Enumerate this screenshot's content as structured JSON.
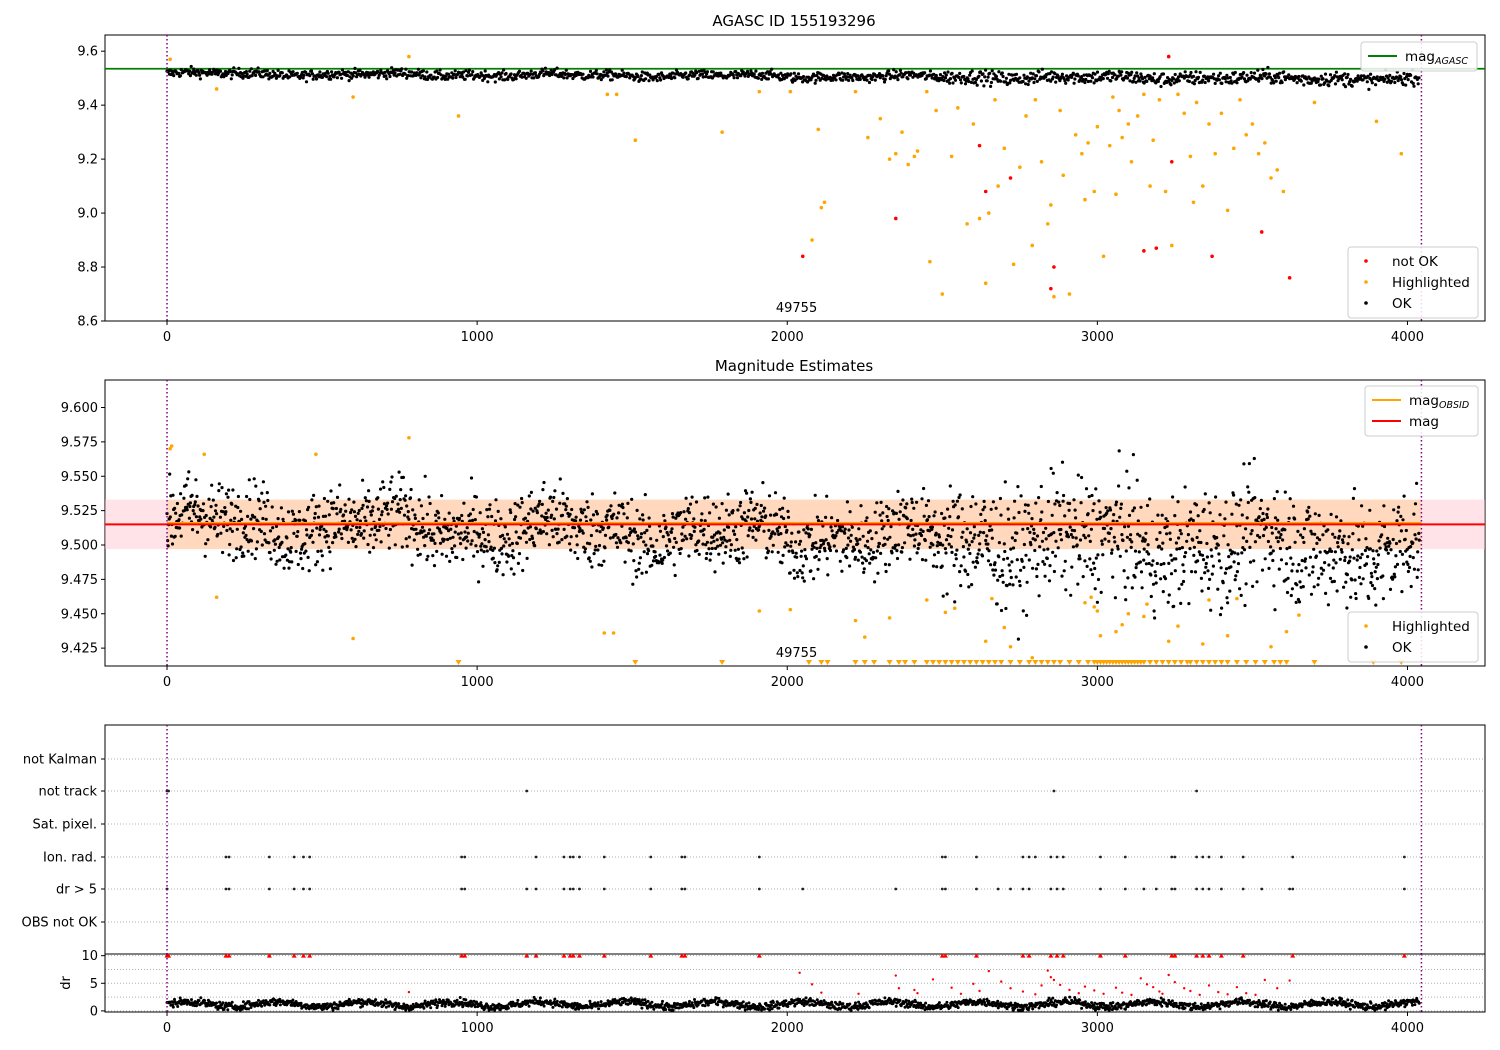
{
  "colors": {
    "ok": "#000000",
    "not_ok": "#ff0000",
    "highlighted": "#ffa500",
    "mag_agasc": "#008000",
    "mag_obsid": "#ffa500",
    "mag": "#ff0000",
    "obsid_marker": "#800080",
    "band_fill": "#ffc0cb",
    "grid": "#b0b0b0"
  },
  "chart_data": [
    {
      "type": "scatter",
      "title": "AGASC ID 155193296",
      "xlim": [
        -200,
        4250
      ],
      "ylim": [
        8.6,
        9.66
      ],
      "x_ticks": [
        "0",
        "1000",
        "2000",
        "3000",
        "4000"
      ],
      "y_ticks": [
        "8.6",
        "8.8",
        "9.0",
        "9.2",
        "9.4",
        "9.6"
      ],
      "obsid_label": "49755",
      "obsid_boundaries": [
        0,
        4045
      ],
      "mag_agasc": 9.535,
      "legend_lines": [
        {
          "label": "mag",
          "subscript": "AGASC"
        }
      ],
      "legend_points": [
        "not OK",
        "Highlighted",
        "OK"
      ],
      "ok_band": {
        "center": 9.517,
        "amplitude": 0.012,
        "trend": -0.02
      },
      "not_ok": [
        [
          2050,
          8.84
        ],
        [
          2350,
          8.98
        ],
        [
          2620,
          9.25
        ],
        [
          2640,
          9.08
        ],
        [
          2720,
          9.13
        ],
        [
          2850,
          8.72
        ],
        [
          2860,
          8.8
        ],
        [
          3150,
          8.86
        ],
        [
          3190,
          8.87
        ],
        [
          3230,
          9.58
        ],
        [
          3240,
          9.19
        ],
        [
          3370,
          8.84
        ],
        [
          3530,
          8.93
        ],
        [
          3620,
          8.76
        ]
      ],
      "highlighted": [
        [
          10,
          9.57
        ],
        [
          160,
          9.46
        ],
        [
          600,
          9.43
        ],
        [
          780,
          9.58
        ],
        [
          940,
          9.36
        ],
        [
          1420,
          9.44
        ],
        [
          1450,
          9.44
        ],
        [
          1510,
          9.27
        ],
        [
          1790,
          9.3
        ],
        [
          1910,
          9.45
        ],
        [
          2010,
          9.45
        ],
        [
          2080,
          8.9
        ],
        [
          2100,
          9.31
        ],
        [
          2110,
          9.02
        ],
        [
          2120,
          9.04
        ],
        [
          2220,
          9.45
        ],
        [
          2260,
          9.28
        ],
        [
          2300,
          9.35
        ],
        [
          2330,
          9.2
        ],
        [
          2350,
          9.22
        ],
        [
          2370,
          9.3
        ],
        [
          2390,
          9.18
        ],
        [
          2410,
          9.21
        ],
        [
          2420,
          9.23
        ],
        [
          2450,
          9.45
        ],
        [
          2460,
          8.82
        ],
        [
          2480,
          9.38
        ],
        [
          2500,
          8.7
        ],
        [
          2530,
          9.21
        ],
        [
          2550,
          9.39
        ],
        [
          2580,
          8.96
        ],
        [
          2600,
          9.33
        ],
        [
          2620,
          8.98
        ],
        [
          2640,
          8.74
        ],
        [
          2650,
          9.0
        ],
        [
          2670,
          9.42
        ],
        [
          2680,
          9.1
        ],
        [
          2700,
          9.24
        ],
        [
          2730,
          8.81
        ],
        [
          2750,
          9.17
        ],
        [
          2770,
          9.36
        ],
        [
          2790,
          8.88
        ],
        [
          2800,
          9.42
        ],
        [
          2820,
          9.19
        ],
        [
          2840,
          8.96
        ],
        [
          2850,
          9.03
        ],
        [
          2860,
          8.69
        ],
        [
          2880,
          9.38
        ],
        [
          2890,
          9.14
        ],
        [
          2910,
          8.7
        ],
        [
          2930,
          9.29
        ],
        [
          2950,
          9.22
        ],
        [
          2960,
          9.05
        ],
        [
          2970,
          9.26
        ],
        [
          2990,
          9.08
        ],
        [
          3000,
          9.32
        ],
        [
          3020,
          8.84
        ],
        [
          3040,
          9.25
        ],
        [
          3050,
          9.43
        ],
        [
          3060,
          9.07
        ],
        [
          3070,
          9.38
        ],
        [
          3080,
          9.28
        ],
        [
          3100,
          9.33
        ],
        [
          3110,
          9.19
        ],
        [
          3130,
          9.36
        ],
        [
          3150,
          9.44
        ],
        [
          3170,
          9.1
        ],
        [
          3180,
          9.27
        ],
        [
          3200,
          9.42
        ],
        [
          3220,
          9.08
        ],
        [
          3240,
          8.88
        ],
        [
          3260,
          9.44
        ],
        [
          3280,
          9.37
        ],
        [
          3300,
          9.21
        ],
        [
          3310,
          9.04
        ],
        [
          3320,
          9.41
        ],
        [
          3340,
          9.1
        ],
        [
          3360,
          9.33
        ],
        [
          3380,
          9.22
        ],
        [
          3400,
          9.37
        ],
        [
          3420,
          9.01
        ],
        [
          3440,
          9.24
        ],
        [
          3460,
          9.42
        ],
        [
          3480,
          9.29
        ],
        [
          3500,
          9.33
        ],
        [
          3520,
          9.22
        ],
        [
          3540,
          9.26
        ],
        [
          3560,
          9.13
        ],
        [
          3580,
          9.16
        ],
        [
          3600,
          9.08
        ],
        [
          3700,
          9.41
        ],
        [
          3900,
          9.34
        ],
        [
          3980,
          9.22
        ]
      ]
    },
    {
      "type": "scatter",
      "title": "Magnitude Estimates",
      "xlim": [
        -200,
        4250
      ],
      "ylim": [
        9.412,
        9.62
      ],
      "x_ticks": [
        "0",
        "1000",
        "2000",
        "3000",
        "4000"
      ],
      "y_ticks": [
        "9.425",
        "9.450",
        "9.475",
        "9.500",
        "9.525",
        "9.550",
        "9.575",
        "9.600"
      ],
      "obsid_label": "49755",
      "obsid_boundaries": [
        0,
        4045
      ],
      "mag_obsid": 9.516,
      "mag": 9.515,
      "band": [
        9.497,
        9.533
      ],
      "legend_lines": [
        {
          "label": "mag",
          "subscript": "OBSID"
        },
        {
          "label": "mag",
          "subscript": ""
        }
      ],
      "legend_points": [
        "Highlighted",
        "OK"
      ],
      "ok_band": {
        "center": 9.517,
        "amplitude": 0.018,
        "trend": -0.02
      },
      "highlighted": [
        [
          10,
          9.57
        ],
        [
          15,
          9.572
        ],
        [
          120,
          9.566
        ],
        [
          160,
          9.462
        ],
        [
          480,
          9.566
        ],
        [
          600,
          9.432
        ],
        [
          780,
          9.578
        ],
        [
          1410,
          9.436
        ],
        [
          1440,
          9.436
        ],
        [
          1910,
          9.452
        ],
        [
          2010,
          9.453
        ],
        [
          2220,
          9.445
        ],
        [
          2250,
          9.433
        ],
        [
          2330,
          9.447
        ],
        [
          2450,
          9.46
        ],
        [
          2510,
          9.451
        ],
        [
          2540,
          9.454
        ],
        [
          2640,
          9.43
        ],
        [
          2660,
          9.461
        ],
        [
          2700,
          9.44
        ],
        [
          2720,
          9.426
        ],
        [
          2790,
          9.418
        ],
        [
          2960,
          9.458
        ],
        [
          2980,
          9.462
        ],
        [
          2990,
          9.455
        ],
        [
          3000,
          9.452
        ],
        [
          3010,
          9.434
        ],
        [
          3060,
          9.437
        ],
        [
          3080,
          9.442
        ],
        [
          3100,
          9.45
        ],
        [
          3150,
          9.448
        ],
        [
          3160,
          9.457
        ],
        [
          3230,
          9.43
        ],
        [
          3260,
          9.441
        ],
        [
          3340,
          9.428
        ],
        [
          3360,
          9.46
        ],
        [
          3420,
          9.434
        ],
        [
          3450,
          9.461
        ],
        [
          3560,
          9.426
        ],
        [
          3610,
          9.437
        ],
        [
          3650,
          9.449
        ]
      ],
      "below_axis": [
        940,
        1510,
        1790,
        2070,
        2110,
        2130,
        2220,
        2250,
        2280,
        2330,
        2360,
        2380,
        2410,
        2450,
        2470,
        2490,
        2510,
        2530,
        2550,
        2570,
        2590,
        2610,
        2630,
        2650,
        2670,
        2690,
        2720,
        2750,
        2780,
        2800,
        2820,
        2840,
        2860,
        2880,
        2910,
        2940,
        2970,
        2990,
        3000,
        3010,
        3020,
        3030,
        3040,
        3050,
        3060,
        3070,
        3080,
        3090,
        3100,
        3110,
        3120,
        3130,
        3140,
        3150,
        3170,
        3190,
        3210,
        3230,
        3250,
        3270,
        3290,
        3300,
        3320,
        3340,
        3360,
        3380,
        3400,
        3420,
        3450,
        3480,
        3510,
        3540,
        3570,
        3590,
        3610,
        3700,
        3890,
        3980
      ]
    },
    {
      "type": "scatter",
      "title": "",
      "xlim": [
        -200,
        4250
      ],
      "categories": [
        "not Kalman",
        "not track",
        "Sat. pixel.",
        "Ion. rad.",
        "dr > 5",
        "OBS not OK"
      ],
      "flags": {
        "not track": [
          0,
          5,
          1160,
          2860,
          3320
        ],
        "Ion. rad.": [
          190,
          200,
          330,
          410,
          440,
          460,
          950,
          960,
          1190,
          1280,
          1300,
          1310,
          1330,
          1410,
          1560,
          1660,
          1670,
          1910,
          2500,
          2510,
          2610,
          2760,
          2780,
          2800,
          2850,
          2870,
          2890,
          3010,
          3090,
          3240,
          3250,
          3320,
          3340,
          3360,
          3400,
          3470,
          3630,
          3990
        ],
        "dr > 5": [
          0,
          190,
          200,
          330,
          410,
          440,
          460,
          950,
          960,
          1160,
          1190,
          1280,
          1300,
          1310,
          1330,
          1410,
          1560,
          1660,
          1670,
          1910,
          2050,
          2350,
          2500,
          2510,
          2610,
          2680,
          2720,
          2760,
          2780,
          2850,
          2870,
          2890,
          3010,
          3090,
          3150,
          3190,
          3240,
          3250,
          3320,
          3340,
          3360,
          3400,
          3470,
          3530,
          3620,
          3630,
          3990
        ]
      },
      "obsid_boundaries": [
        0,
        4045
      ]
    },
    {
      "type": "scatter",
      "title": "",
      "xlim": [
        -200,
        4250
      ],
      "ylim": [
        -0.2,
        10.3
      ],
      "ylabel": "dr",
      "x_ticks": [
        "0",
        "1000",
        "2000",
        "3000",
        "4000"
      ],
      "y_ticks": [
        "0",
        "5",
        "10"
      ],
      "obsid_boundaries": [
        0,
        4045
      ],
      "ok_band": {
        "center": 1.2,
        "amplitude": 0.6
      },
      "red_clipped": [
        0,
        5,
        190,
        200,
        330,
        410,
        440,
        460,
        950,
        960,
        1160,
        1190,
        1280,
        1300,
        1310,
        1330,
        1410,
        1560,
        1660,
        1670,
        1910,
        2500,
        2510,
        2610,
        2760,
        2780,
        2850,
        2870,
        2890,
        3010,
        3090,
        3240,
        3250,
        3320,
        3340,
        3360,
        3400,
        3470,
        3630,
        3990
      ],
      "red_points": [
        [
          780,
          3.4
        ],
        [
          2040,
          6.9
        ],
        [
          2080,
          4.8
        ],
        [
          2110,
          3.3
        ],
        [
          2230,
          3.1
        ],
        [
          2350,
          6.4
        ],
        [
          2360,
          4.1
        ],
        [
          2410,
          3.8
        ],
        [
          2420,
          3.2
        ],
        [
          2470,
          5.7
        ],
        [
          2530,
          4.2
        ],
        [
          2560,
          3.1
        ],
        [
          2600,
          4.9
        ],
        [
          2620,
          3.6
        ],
        [
          2650,
          7.2
        ],
        [
          2690,
          5.3
        ],
        [
          2720,
          4.1
        ],
        [
          2760,
          3.5
        ],
        [
          2800,
          3.0
        ],
        [
          2820,
          4.6
        ],
        [
          2840,
          7.3
        ],
        [
          2850,
          6.1
        ],
        [
          2860,
          5.6
        ],
        [
          2880,
          4.7
        ],
        [
          2910,
          3.8
        ],
        [
          2940,
          3.2
        ],
        [
          2960,
          4.4
        ],
        [
          2990,
          3.7
        ],
        [
          3020,
          3.1
        ],
        [
          3060,
          4.2
        ],
        [
          3080,
          3.3
        ],
        [
          3110,
          2.9
        ],
        [
          3140,
          5.9
        ],
        [
          3160,
          4.8
        ],
        [
          3180,
          4.3
        ],
        [
          3200,
          3.5
        ],
        [
          3210,
          3.1
        ],
        [
          3230,
          6.5
        ],
        [
          3250,
          5.2
        ],
        [
          3280,
          4.1
        ],
        [
          3300,
          3.6
        ],
        [
          3330,
          2.9
        ],
        [
          3360,
          4.6
        ],
        [
          3390,
          3.4
        ],
        [
          3420,
          3.0
        ],
        [
          3450,
          4.3
        ],
        [
          3480,
          3.2
        ],
        [
          3510,
          2.9
        ],
        [
          3540,
          5.6
        ],
        [
          3580,
          4.1
        ],
        [
          3620,
          5.5
        ]
      ]
    }
  ]
}
